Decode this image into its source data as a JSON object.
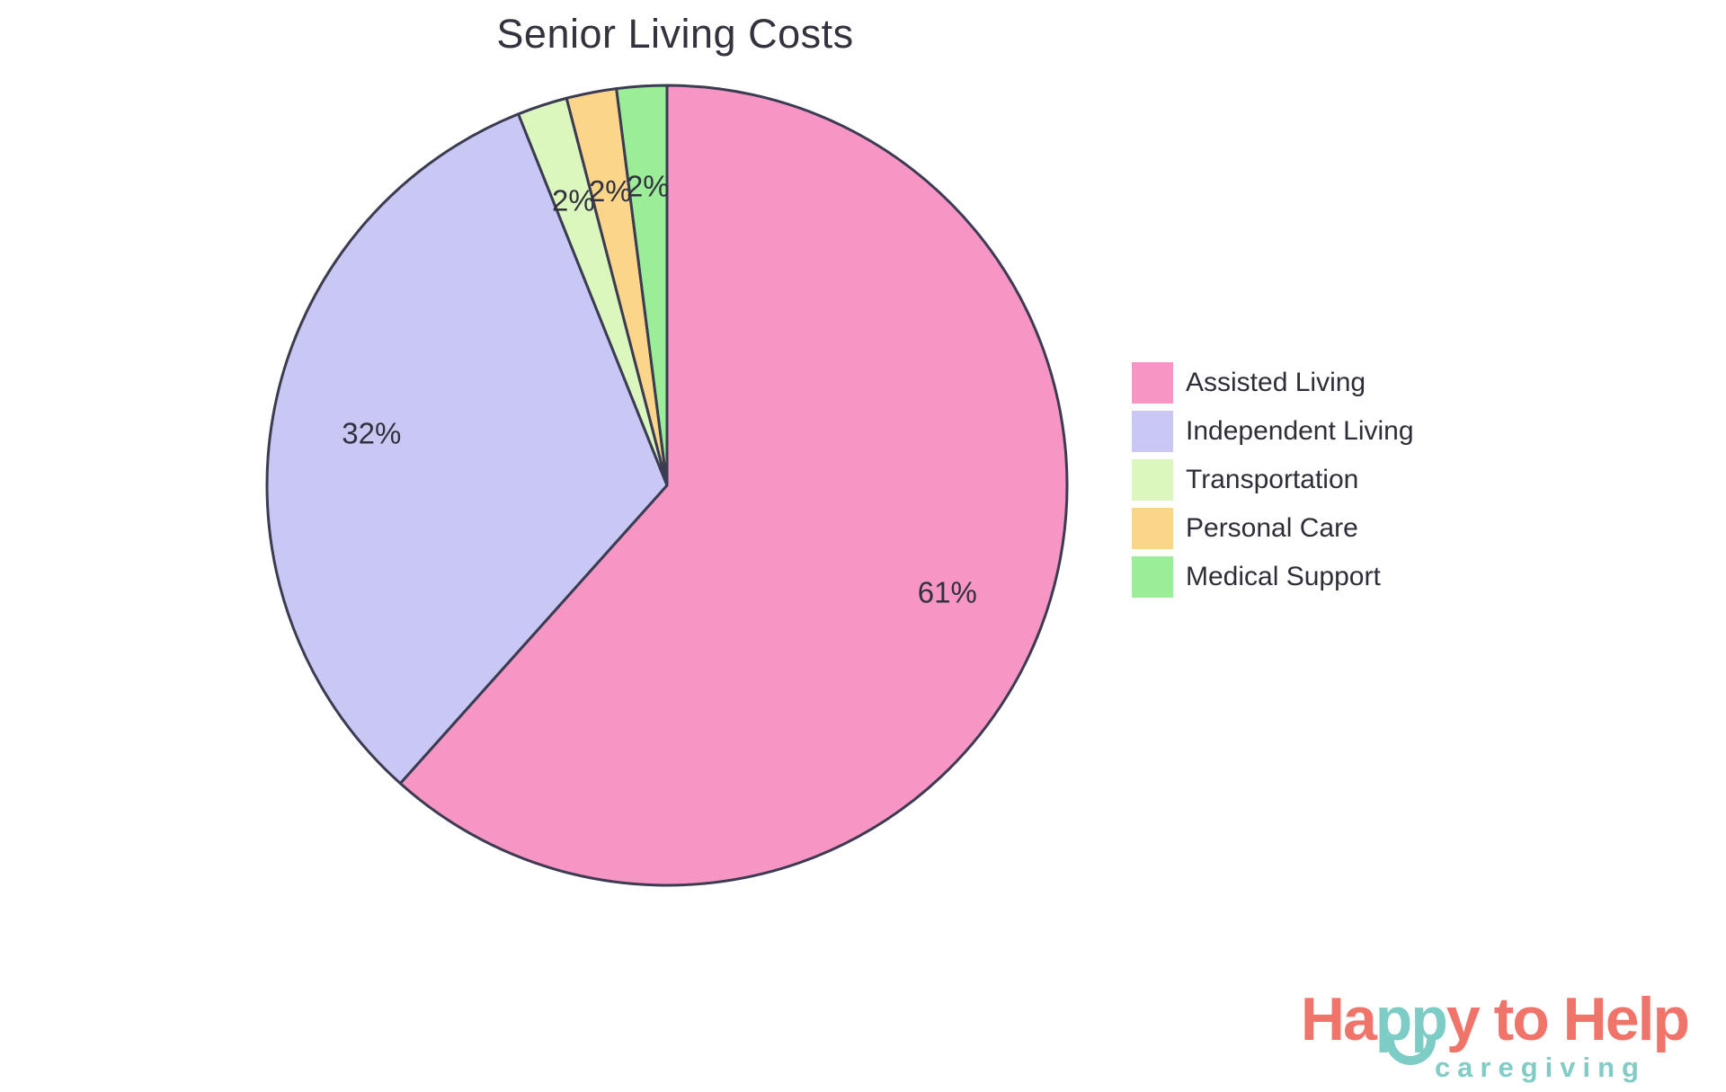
{
  "chart_data": {
    "type": "pie",
    "title": "Senior Living Costs",
    "categories": [
      "Assisted Living",
      "Independent Living",
      "Transportation",
      "Personal Care",
      "Medical Support"
    ],
    "values": [
      61,
      32,
      2,
      2,
      2
    ],
    "percent_labels": [
      "61%",
      "32%",
      "2%",
      "2%",
      "2%"
    ],
    "colors": [
      "#F795C4",
      "#C9C8F5",
      "#DBF7BD",
      "#FBD68A",
      "#9BED97"
    ],
    "slice_border_color": "#3B3B52",
    "percent_label_color": "#32323E",
    "start_angle": "12-oclock",
    "direction": "clockwise",
    "legend_position": "right",
    "legend_items": [
      "Assisted Living",
      "Independent Living",
      "Transportation",
      "Personal Care",
      "Medical Support"
    ]
  },
  "logo": {
    "part1": "Ha",
    "part2": "pp",
    "part3": "y to Help",
    "tagline": "caregiving",
    "coral_color": "#F1746A",
    "teal_color": "#7ECCC6",
    "tagline_color": "#82CCC6"
  }
}
